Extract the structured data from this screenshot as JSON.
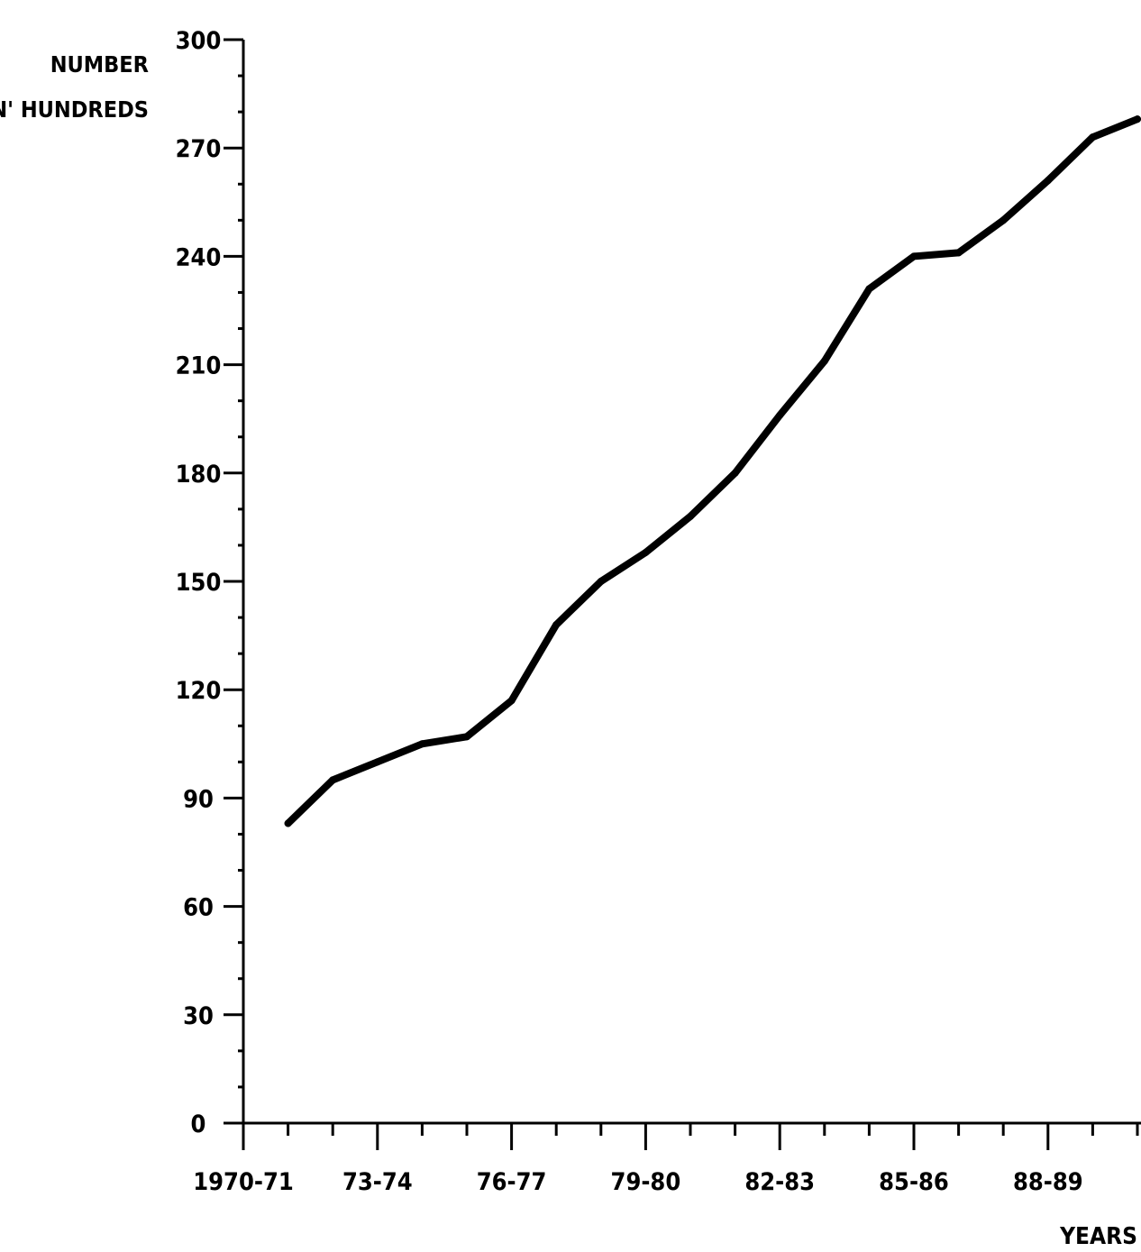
{
  "chart_data": {
    "type": "line",
    "title": "",
    "ylabel_lines": [
      "NUMBER",
      "N' HUNDREDS"
    ],
    "xlabel": "YEARS",
    "ylim": [
      0,
      300
    ],
    "y_ticks": [
      "0",
      "30",
      "60",
      "90",
      "120",
      "150",
      "180",
      "210",
      "240",
      "270",
      "300"
    ],
    "y_tick_values": [
      0,
      30,
      60,
      90,
      120,
      150,
      180,
      210,
      240,
      270,
      300
    ],
    "x_tick_labels": [
      "1970-71",
      "73-74",
      "76-77",
      "79-80",
      "82-83",
      "85-86",
      "88-89"
    ],
    "x_tick_label_positions": [
      0,
      3,
      6,
      9,
      12,
      15,
      18
    ],
    "x_range": [
      0,
      20
    ],
    "grid": false,
    "series": [
      {
        "x": [
          1,
          2,
          3,
          4,
          5,
          6,
          7,
          8,
          9,
          10,
          11,
          12,
          13,
          14,
          15,
          16,
          17,
          18,
          19,
          20
        ],
        "values": [
          83,
          95,
          100,
          105,
          107,
          117,
          138,
          150,
          158,
          168,
          180,
          196,
          211,
          231,
          240,
          241,
          250,
          261,
          273,
          278
        ]
      }
    ]
  }
}
